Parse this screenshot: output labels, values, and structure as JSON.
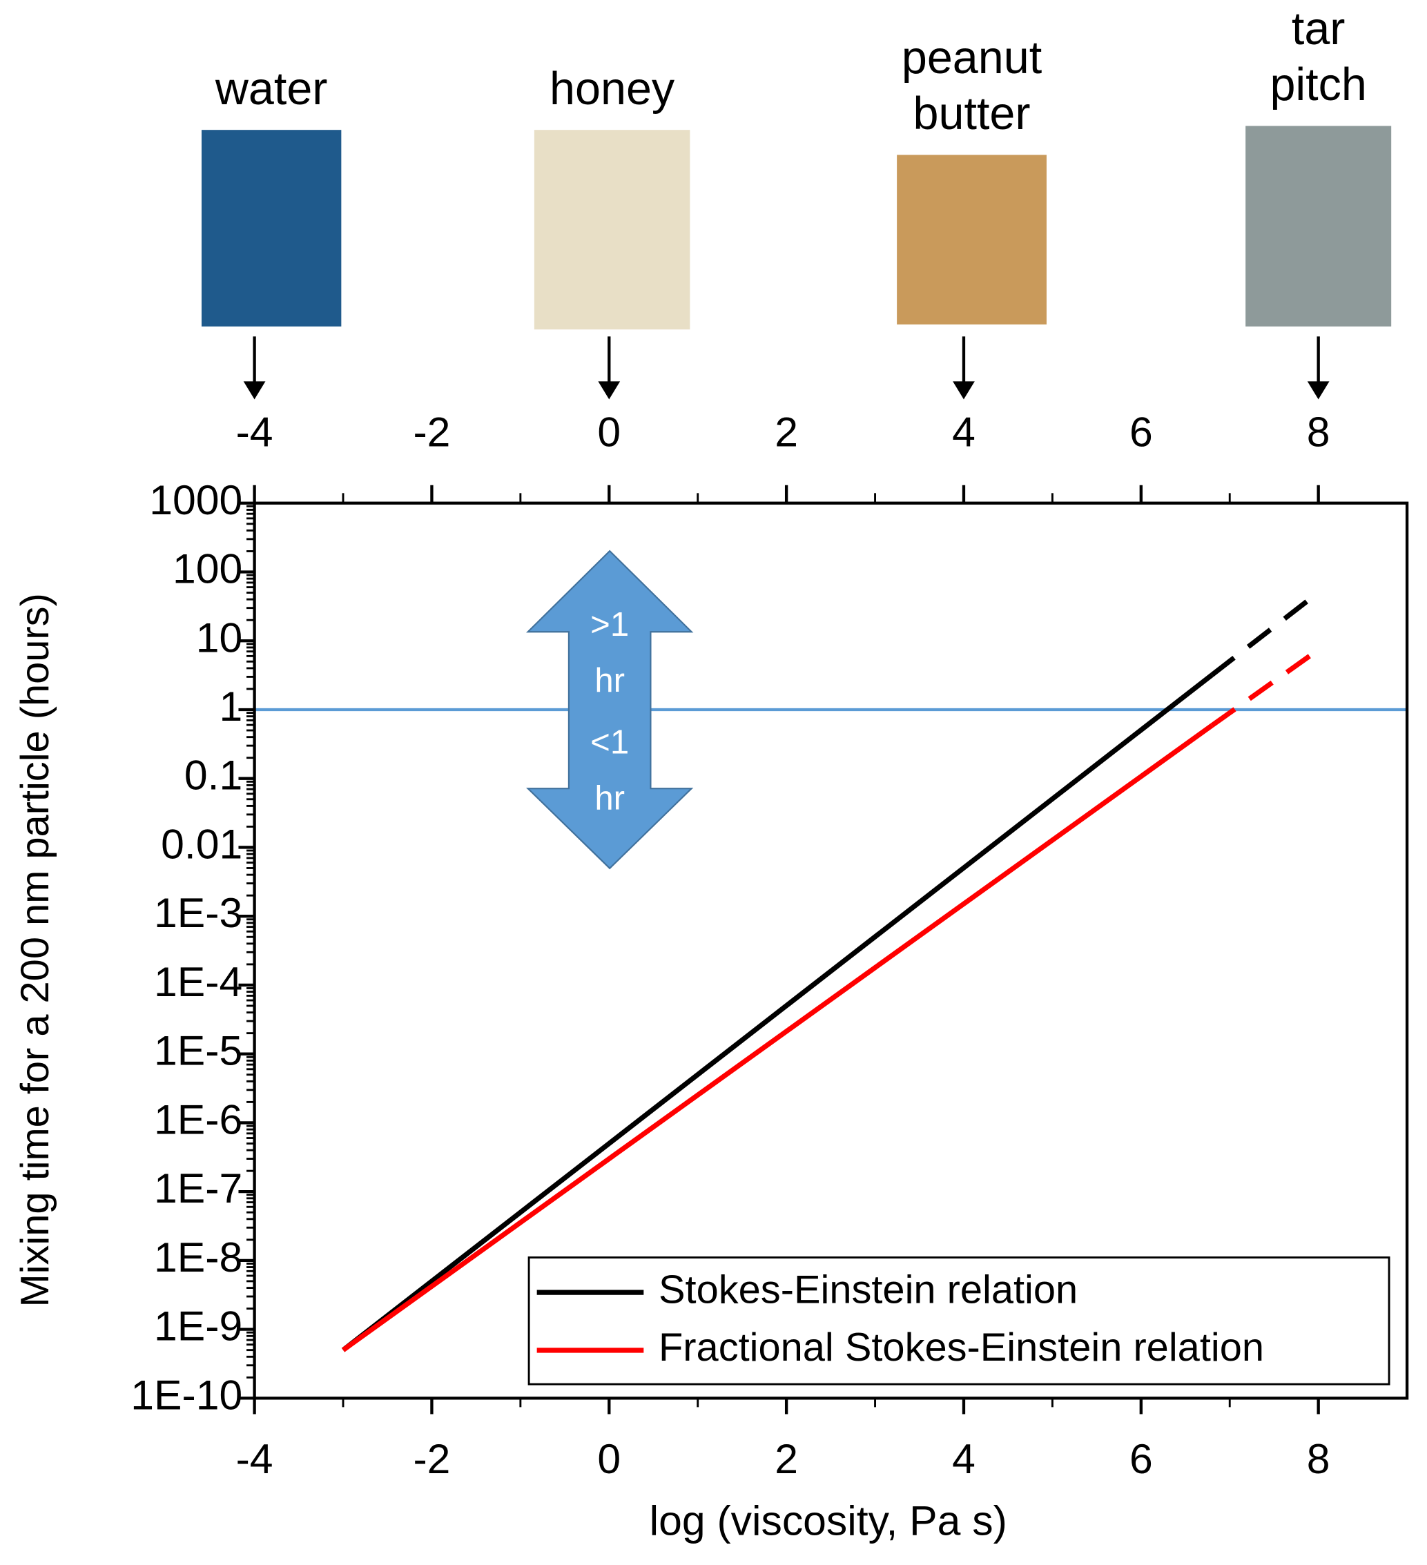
{
  "chart_data": {
    "type": "line",
    "xlabel": "log (viscosity, Pa s)",
    "ylabel": "Mixing time for a 200 nm particle (hours)",
    "log_y": true,
    "xlim": [
      -4,
      9
    ],
    "ylim": [
      1e-10,
      1000
    ],
    "xticks": [
      -4,
      -2,
      0,
      2,
      4,
      6,
      8
    ],
    "top_xticks": [
      -4,
      -2,
      0,
      2,
      4,
      6,
      8
    ],
    "yticks": [
      {
        "value": 1e-10,
        "label": "1E-10"
      },
      {
        "value": 1e-09,
        "label": "1E-9"
      },
      {
        "value": 1e-08,
        "label": "1E-8"
      },
      {
        "value": 1e-07,
        "label": "1E-7"
      },
      {
        "value": 1e-06,
        "label": "1E-6"
      },
      {
        "value": 1e-05,
        "label": "1E-5"
      },
      {
        "value": 0.0001,
        "label": "1E-4"
      },
      {
        "value": 0.001,
        "label": "1E-3"
      },
      0.01,
      0.1,
      1,
      10,
      100,
      1000
    ],
    "reference_line": {
      "y": 1,
      "color": "#5b9bd5"
    },
    "series": [
      {
        "name": "Stokes-Einstein relation",
        "color": "#000000",
        "x": [
          -3,
          0,
          6.8,
          7.9
        ],
        "values": [
          5e-10,
          5e-07,
          3.2,
          40
        ],
        "dashed_from": 2
      },
      {
        "name": "Fractional Stokes-Einstein relation",
        "color": "#ff0000",
        "x": [
          -3,
          0,
          6.8,
          7.9
        ],
        "values": [
          5e-10,
          3e-07,
          0.59,
          6
        ],
        "dashed_from": 2
      }
    ],
    "legend": "lower right",
    "materials": [
      {
        "lines": [
          "water"
        ],
        "x": -4,
        "color": "#1f5a8c"
      },
      {
        "lines": [
          "honey"
        ],
        "x": 0,
        "color": "#e8dfc6"
      },
      {
        "lines": [
          "peanut",
          "butter"
        ],
        "x": 4,
        "color": "#c99a5b"
      },
      {
        "lines": [
          "tar",
          "pitch"
        ],
        "x": 8,
        "color": "#8e9a9a"
      }
    ],
    "arrow_labels": [
      [
        ">1",
        "hr"
      ],
      [
        "<1",
        "hr"
      ]
    ],
    "arrow_color": "#5b9bd5"
  }
}
